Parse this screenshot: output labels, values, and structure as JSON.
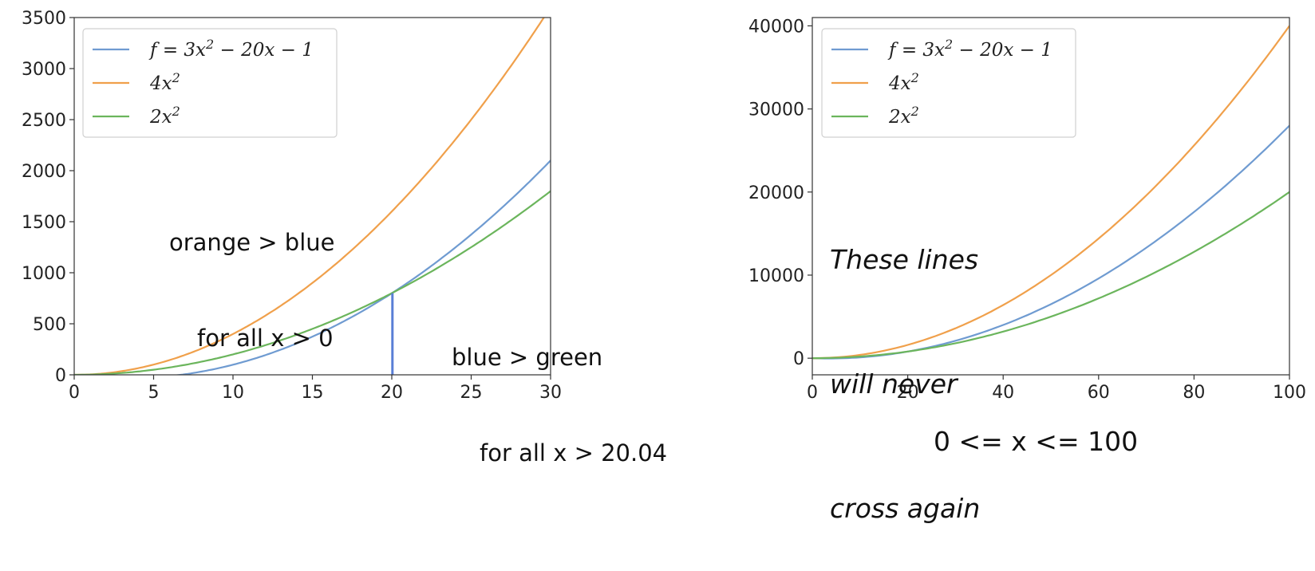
{
  "chart_data": [
    {
      "type": "line",
      "title": "",
      "xlabel": "",
      "ylabel": "",
      "xlim": [
        0,
        30
      ],
      "ylim": [
        0,
        3500
      ],
      "xticks": [
        "0",
        "5",
        "10",
        "15",
        "20",
        "25",
        "30"
      ],
      "yticks": [
        "0",
        "500",
        "1000",
        "1500",
        "2000",
        "2500",
        "3000",
        "3500"
      ],
      "grid": false,
      "legend_position": "top-left",
      "series": [
        {
          "name": "f = 3x² − 20x − 1",
          "color": "#6f9bd1",
          "x": [
            0,
            2,
            4,
            6,
            8,
            10,
            12,
            14,
            16,
            18,
            20,
            22,
            24,
            26,
            28,
            30
          ],
          "y": [
            -1,
            -29,
            -33,
            -13,
            31,
            99,
            191,
            307,
            447,
            611,
            799,
            1011,
            1247,
            1507,
            1791,
            2099
          ]
        },
        {
          "name": "4x²",
          "color": "#f0a04b",
          "x": [
            0,
            2,
            4,
            6,
            8,
            10,
            12,
            14,
            16,
            18,
            20,
            22,
            24,
            26,
            28,
            30
          ],
          "y": [
            0,
            16,
            64,
            144,
            256,
            400,
            576,
            784,
            1024,
            1296,
            1600,
            1936,
            2304,
            2704,
            3136,
            3600
          ]
        },
        {
          "name": "2x²",
          "color": "#6bb55c",
          "x": [
            0,
            2,
            4,
            6,
            8,
            10,
            12,
            14,
            16,
            18,
            20,
            22,
            24,
            26,
            28,
            30
          ],
          "y": [
            0,
            8,
            32,
            72,
            128,
            200,
            288,
            392,
            512,
            648,
            800,
            968,
            1152,
            1352,
            1568,
            1800
          ]
        }
      ],
      "vertical_marker": {
        "x": 20.04,
        "y_top": 800,
        "color": "#5a7fd6"
      },
      "annotations": [
        {
          "lines": [
            "orange > blue",
            "for all x > 0"
          ]
        },
        {
          "lines": [
            "blue > green",
            "for all x > 20.04"
          ]
        }
      ]
    },
    {
      "type": "line",
      "title": "",
      "xlabel": "0 <= x <= 100",
      "ylabel": "",
      "xlim": [
        0,
        100
      ],
      "ylim": [
        -2000,
        41000
      ],
      "xticks": [
        "0",
        "20",
        "40",
        "60",
        "80",
        "100"
      ],
      "yticks": [
        "0",
        "10000",
        "20000",
        "30000",
        "40000"
      ],
      "grid": false,
      "legend_position": "top-left",
      "series": [
        {
          "name": "f = 3x² − 20x − 1",
          "color": "#6f9bd1",
          "x": [
            0,
            10,
            20,
            30,
            40,
            50,
            60,
            70,
            80,
            90,
            100
          ],
          "y": [
            -1,
            99,
            799,
            2099,
            3999,
            6499,
            9599,
            13299,
            17599,
            22499,
            27999
          ]
        },
        {
          "name": "4x²",
          "color": "#f0a04b",
          "x": [
            0,
            10,
            20,
            30,
            40,
            50,
            60,
            70,
            80,
            90,
            100
          ],
          "y": [
            0,
            400,
            1600,
            3600,
            6400,
            10000,
            14400,
            19600,
            25600,
            32400,
            40000
          ]
        },
        {
          "name": "2x²",
          "color": "#6bb55c",
          "x": [
            0,
            10,
            20,
            30,
            40,
            50,
            60,
            70,
            80,
            90,
            100
          ],
          "y": [
            0,
            200,
            800,
            1800,
            3200,
            5000,
            7200,
            9800,
            12800,
            16200,
            20000
          ]
        }
      ],
      "annotations": [
        {
          "lines": [
            "These lines",
            "will never",
            "cross again"
          ]
        }
      ]
    }
  ]
}
